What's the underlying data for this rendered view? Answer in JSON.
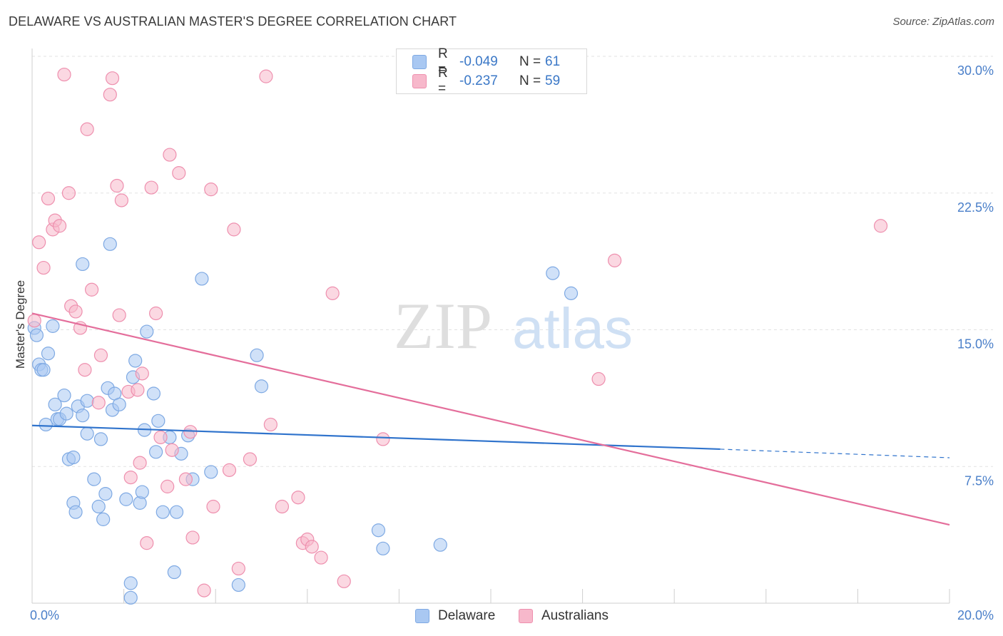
{
  "header": {
    "title": "DELAWARE VS AUSTRALIAN MASTER'S DEGREE CORRELATION CHART",
    "source": "Source: ZipAtlas.com"
  },
  "legend": {
    "rows": [
      {
        "r_label": "R =",
        "r_value": "-0.049",
        "n_label": "N =",
        "n_value": "61",
        "color": "#a9c8f2",
        "border": "#7ea9e3"
      },
      {
        "r_label": "R =",
        "r_value": "-0.237",
        "n_label": "N =",
        "n_value": "59",
        "color": "#f7b8cb",
        "border": "#ee8fae"
      }
    ]
  },
  "bottom_legend": [
    {
      "label": "Delaware",
      "color": "#a9c8f2",
      "border": "#7ea9e3"
    },
    {
      "label": "Australians",
      "color": "#f7b8cb",
      "border": "#ee8fae"
    }
  ],
  "watermark": {
    "part1": "ZIP",
    "part2": "atlas"
  },
  "chart_data": {
    "type": "scatter",
    "title": "DELAWARE VS AUSTRALIAN MASTER'S DEGREE CORRELATION CHART",
    "xlabel": "",
    "ylabel": "Master's Degree",
    "xlim": [
      0,
      20
    ],
    "ylim": [
      0,
      30
    ],
    "x_tick_labels": [
      {
        "value": 0,
        "label": "0.0%"
      },
      {
        "value": 20,
        "label": "20.0%"
      }
    ],
    "y_tick_labels": [
      {
        "value": 7.5,
        "label": "7.5%"
      },
      {
        "value": 15,
        "label": "15.0%"
      },
      {
        "value": 22.5,
        "label": "22.5%"
      },
      {
        "value": 30,
        "label": "30.0%"
      }
    ],
    "grid": true,
    "series": [
      {
        "name": "Delaware",
        "color": "#a9c8f2",
        "edge": "#7ea9e3",
        "line_color": "#2f73cc",
        "trend": {
          "x0": 0,
          "y0": 9.75,
          "x1": 15,
          "y1": 8.45,
          "dash_to_x": 20,
          "dash_to_y": 7.98
        },
        "points": [
          [
            0.05,
            15.1
          ],
          [
            0.1,
            14.7
          ],
          [
            0.15,
            13.1
          ],
          [
            0.2,
            12.8
          ],
          [
            0.25,
            12.8
          ],
          [
            0.3,
            9.8
          ],
          [
            0.35,
            13.7
          ],
          [
            0.45,
            15.2
          ],
          [
            0.5,
            10.9
          ],
          [
            0.55,
            10.1
          ],
          [
            0.6,
            10.1
          ],
          [
            0.7,
            11.4
          ],
          [
            0.75,
            10.4
          ],
          [
            0.8,
            7.9
          ],
          [
            0.9,
            8.0
          ],
          [
            0.9,
            5.5
          ],
          [
            0.95,
            5.0
          ],
          [
            1.0,
            10.8
          ],
          [
            1.1,
            10.3
          ],
          [
            1.2,
            11.1
          ],
          [
            1.2,
            9.3
          ],
          [
            1.1,
            18.6
          ],
          [
            1.35,
            6.8
          ],
          [
            1.45,
            5.3
          ],
          [
            1.5,
            9.0
          ],
          [
            1.55,
            4.6
          ],
          [
            1.6,
            6.0
          ],
          [
            1.65,
            11.8
          ],
          [
            1.7,
            19.7
          ],
          [
            1.75,
            10.6
          ],
          [
            1.8,
            11.5
          ],
          [
            1.9,
            10.9
          ],
          [
            2.05,
            5.7
          ],
          [
            2.15,
            1.1
          ],
          [
            2.15,
            0.3
          ],
          [
            2.2,
            12.4
          ],
          [
            2.25,
            13.3
          ],
          [
            2.35,
            5.5
          ],
          [
            2.4,
            6.1
          ],
          [
            2.45,
            9.5
          ],
          [
            2.5,
            14.9
          ],
          [
            2.65,
            11.5
          ],
          [
            2.7,
            8.3
          ],
          [
            2.75,
            10.0
          ],
          [
            2.85,
            5.0
          ],
          [
            3.0,
            9.1
          ],
          [
            3.1,
            1.7
          ],
          [
            3.15,
            5.0
          ],
          [
            3.25,
            8.2
          ],
          [
            3.4,
            9.2
          ],
          [
            3.5,
            6.8
          ],
          [
            3.7,
            17.8
          ],
          [
            3.9,
            7.2
          ],
          [
            4.5,
            1.0
          ],
          [
            4.9,
            13.6
          ],
          [
            5.0,
            11.9
          ],
          [
            7.55,
            4.0
          ],
          [
            7.65,
            3.0
          ],
          [
            8.9,
            3.2
          ],
          [
            11.35,
            18.1
          ],
          [
            11.75,
            17.0
          ]
        ]
      },
      {
        "name": "Australians",
        "color": "#f7b8cb",
        "edge": "#ee8fae",
        "line_color": "#e46e9b",
        "trend": {
          "x0": 0,
          "y0": 15.9,
          "x1": 20,
          "y1": 4.3
        },
        "points": [
          [
            0.05,
            15.5
          ],
          [
            0.15,
            19.8
          ],
          [
            0.25,
            18.4
          ],
          [
            0.35,
            22.2
          ],
          [
            0.45,
            20.5
          ],
          [
            0.5,
            21.0
          ],
          [
            0.6,
            20.7
          ],
          [
            0.7,
            29.0
          ],
          [
            0.8,
            22.5
          ],
          [
            0.85,
            16.3
          ],
          [
            0.95,
            16.0
          ],
          [
            1.05,
            15.1
          ],
          [
            1.15,
            12.8
          ],
          [
            1.2,
            26.0
          ],
          [
            1.3,
            17.2
          ],
          [
            1.45,
            11.0
          ],
          [
            1.5,
            13.6
          ],
          [
            1.7,
            27.9
          ],
          [
            1.75,
            28.8
          ],
          [
            1.85,
            22.9
          ],
          [
            1.9,
            15.8
          ],
          [
            1.95,
            22.1
          ],
          [
            2.1,
            11.6
          ],
          [
            2.15,
            6.9
          ],
          [
            2.3,
            11.7
          ],
          [
            2.35,
            7.7
          ],
          [
            2.4,
            12.6
          ],
          [
            2.5,
            3.3
          ],
          [
            2.6,
            22.8
          ],
          [
            2.7,
            15.9
          ],
          [
            2.8,
            9.1
          ],
          [
            2.95,
            6.4
          ],
          [
            3.0,
            24.6
          ],
          [
            3.05,
            8.4
          ],
          [
            3.2,
            23.6
          ],
          [
            3.35,
            6.8
          ],
          [
            3.45,
            9.4
          ],
          [
            3.5,
            3.6
          ],
          [
            3.75,
            0.7
          ],
          [
            3.9,
            22.7
          ],
          [
            3.95,
            5.3
          ],
          [
            4.3,
            7.3
          ],
          [
            4.4,
            20.5
          ],
          [
            4.5,
            1.9
          ],
          [
            4.75,
            7.9
          ],
          [
            5.1,
            28.9
          ],
          [
            5.2,
            9.8
          ],
          [
            5.45,
            5.3
          ],
          [
            5.8,
            5.8
          ],
          [
            5.9,
            3.3
          ],
          [
            6.0,
            3.5
          ],
          [
            6.1,
            3.1
          ],
          [
            6.3,
            2.5
          ],
          [
            6.55,
            17.0
          ],
          [
            6.8,
            1.2
          ],
          [
            7.65,
            9.0
          ],
          [
            12.35,
            12.3
          ],
          [
            12.7,
            18.8
          ],
          [
            18.5,
            20.7
          ]
        ]
      }
    ]
  }
}
